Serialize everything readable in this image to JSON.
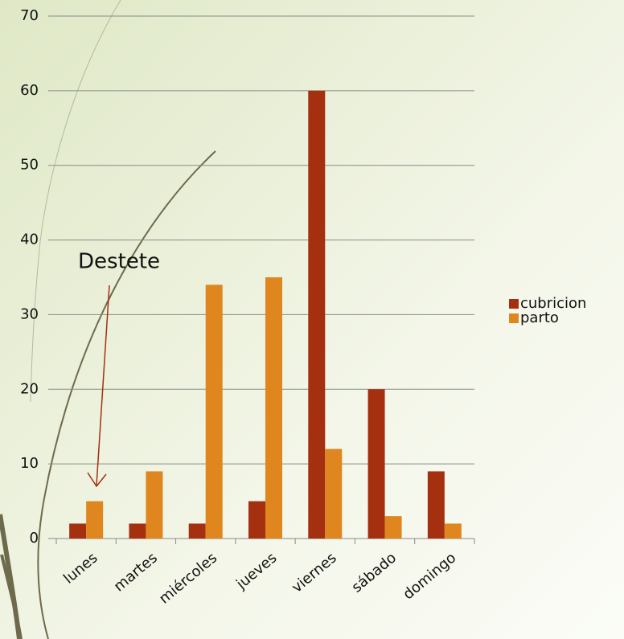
{
  "chart_data": {
    "type": "bar",
    "categories": [
      "lunes",
      "martes",
      "miércoles",
      "jueves",
      "viernes",
      "sábado",
      "domingo"
    ],
    "series": [
      {
        "name": "cubricion",
        "color": "#a5300f",
        "values": [
          2,
          2,
          2,
          5,
          60,
          20,
          9
        ]
      },
      {
        "name": "parto",
        "color": "#e0861f",
        "values": [
          5,
          9,
          34,
          35,
          12,
          3,
          2
        ]
      }
    ],
    "ylim": [
      0,
      70
    ],
    "yticks": [
      0,
      10,
      20,
      30,
      40,
      50,
      60,
      70
    ],
    "grid": true,
    "legend": "right",
    "annotations": [
      {
        "text": "Destete"
      }
    ]
  }
}
